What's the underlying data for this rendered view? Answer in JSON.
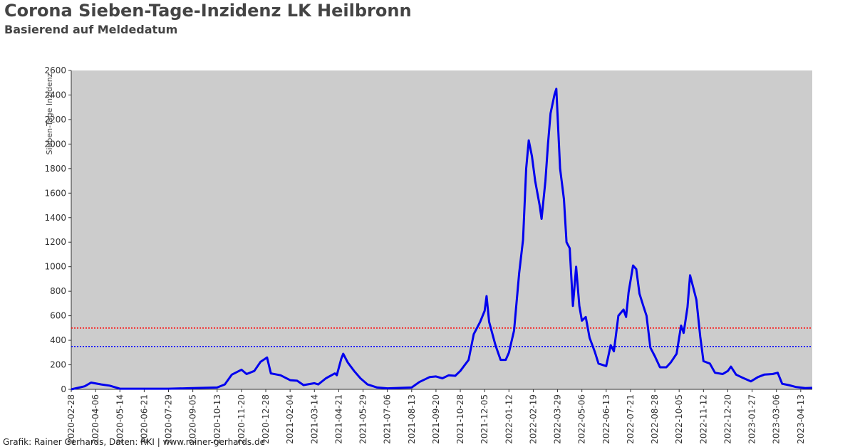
{
  "chart_data": {
    "type": "line",
    "title": "Corona Sieben-Tage-Inzidenz LK Heilbronn",
    "subtitle": "Basierend auf Meldedatum",
    "y_label": "Sieben-Tage Inzidenz",
    "footer": "Grafik: Rainer Gerhards, Daten: RKI | www.rainer-gerhards.de",
    "background": "#cccccc",
    "xlim": [
      "2020-02-28",
      "2023-05-01"
    ],
    "xticks": [
      "2020-02-28",
      "2020-04-06",
      "2020-05-14",
      "2020-06-21",
      "2020-07-29",
      "2020-09-05",
      "2020-10-13",
      "2020-11-20",
      "2020-12-28",
      "2021-02-04",
      "2021-03-14",
      "2021-04-21",
      "2021-05-29",
      "2021-07-06",
      "2021-08-13",
      "2021-09-20",
      "2021-10-28",
      "2021-12-05",
      "2022-01-12",
      "2022-02-19",
      "2022-03-29",
      "2022-05-06",
      "2022-06-13",
      "2022-07-21",
      "2022-08-28",
      "2022-10-05",
      "2022-11-12",
      "2022-12-20",
      "2023-01-27",
      "2023-03-06",
      "2023-04-13"
    ],
    "ylim": [
      0,
      2600
    ],
    "yticks": [
      0,
      200,
      400,
      600,
      800,
      1000,
      1200,
      1400,
      1600,
      1800,
      2000,
      2200,
      2400,
      2600
    ],
    "reference_lines": [
      {
        "value": 500,
        "color": "#ff0000"
      },
      {
        "value": 350,
        "color": "#0000ff"
      }
    ],
    "x": [
      "2020-02-28",
      "2020-03-20",
      "2020-03-30",
      "2020-04-15",
      "2020-04-28",
      "2020-05-14",
      "2020-07-29",
      "2020-09-05",
      "2020-10-13",
      "2020-10-25",
      "2020-11-05",
      "2020-11-20",
      "2020-11-28",
      "2020-12-10",
      "2020-12-20",
      "2020-12-30",
      "2021-01-05",
      "2021-01-20",
      "2021-02-04",
      "2021-02-15",
      "2021-02-25",
      "2021-03-14",
      "2021-03-20",
      "2021-04-01",
      "2021-04-15",
      "2021-04-18",
      "2021-04-25",
      "2021-04-28",
      "2021-05-05",
      "2021-05-15",
      "2021-05-25",
      "2021-06-05",
      "2021-06-20",
      "2021-07-06",
      "2021-08-13",
      "2021-08-25",
      "2021-09-10",
      "2021-09-20",
      "2021-09-30",
      "2021-10-10",
      "2021-10-20",
      "2021-10-28",
      "2021-11-10",
      "2021-11-18",
      "2021-11-28",
      "2021-12-05",
      "2021-12-08",
      "2021-12-12",
      "2021-12-22",
      "2021-12-30",
      "2022-01-07",
      "2022-01-12",
      "2022-01-20",
      "2022-01-28",
      "2022-02-03",
      "2022-02-08",
      "2022-02-12",
      "2022-02-17",
      "2022-02-22",
      "2022-03-01",
      "2022-03-04",
      "2022-03-10",
      "2022-03-14",
      "2022-03-18",
      "2022-03-24",
      "2022-03-27",
      "2022-04-02",
      "2022-04-08",
      "2022-04-12",
      "2022-04-17",
      "2022-04-22",
      "2022-04-27",
      "2022-05-02",
      "2022-05-06",
      "2022-05-12",
      "2022-05-18",
      "2022-05-26",
      "2022-06-01",
      "2022-06-13",
      "2022-06-20",
      "2022-06-25",
      "2022-07-02",
      "2022-07-10",
      "2022-07-14",
      "2022-07-18",
      "2022-07-25",
      "2022-07-30",
      "2022-08-04",
      "2022-08-10",
      "2022-08-15",
      "2022-08-21",
      "2022-08-28",
      "2022-09-05",
      "2022-09-15",
      "2022-09-22",
      "2022-10-01",
      "2022-10-08",
      "2022-10-12",
      "2022-10-18",
      "2022-10-22",
      "2022-10-27",
      "2022-11-01",
      "2022-11-07",
      "2022-11-12",
      "2022-11-22",
      "2022-11-30",
      "2022-12-12",
      "2022-12-20",
      "2022-12-25",
      "2023-01-02",
      "2023-01-12",
      "2023-01-25",
      "2023-02-05",
      "2023-02-15",
      "2023-02-28",
      "2023-03-08",
      "2023-03-15",
      "2023-03-25",
      "2023-04-05",
      "2023-04-20",
      "2023-05-01"
    ],
    "series": [
      {
        "name": "Sieben-Tage-Inzidenz",
        "color": "#0000ee",
        "values": [
          0,
          25,
          55,
          40,
          30,
          5,
          5,
          10,
          15,
          40,
          120,
          160,
          125,
          150,
          225,
          260,
          130,
          115,
          75,
          70,
          35,
          50,
          40,
          90,
          130,
          115,
          250,
          290,
          220,
          150,
          90,
          40,
          15,
          8,
          15,
          60,
          100,
          105,
          90,
          115,
          110,
          150,
          240,
          450,
          550,
          640,
          760,
          550,
          360,
          240,
          240,
          300,
          480,
          950,
          1220,
          1800,
          2030,
          1900,
          1700,
          1500,
          1390,
          1700,
          2000,
          2250,
          2400,
          2450,
          1800,
          1550,
          1200,
          1150,
          680,
          1000,
          680,
          560,
          590,
          420,
          310,
          210,
          190,
          360,
          310,
          600,
          650,
          590,
          790,
          1010,
          980,
          780,
          680,
          600,
          340,
          270,
          180,
          180,
          220,
          290,
          520,
          460,
          670,
          930,
          830,
          730,
          430,
          230,
          210,
          135,
          125,
          150,
          185,
          120,
          95,
          65,
          100,
          120,
          125,
          135,
          45,
          35,
          20,
          10,
          12
        ]
      }
    ]
  }
}
